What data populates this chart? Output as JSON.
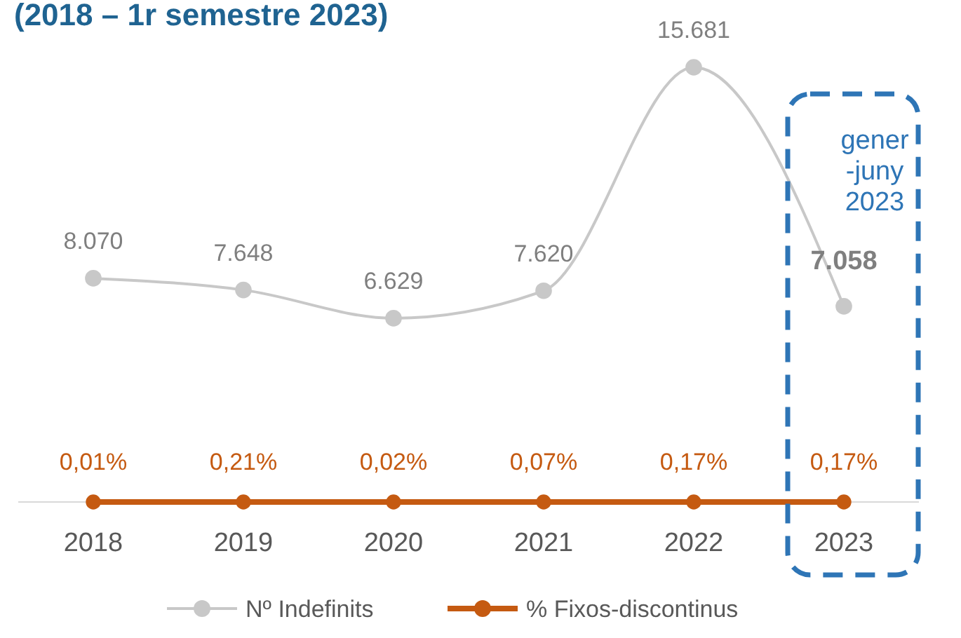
{
  "chart_data": {
    "type": "line",
    "title": "(2018 – 1r semestre 2023)",
    "categories": [
      "2018",
      "2019",
      "2020",
      "2021",
      "2022",
      "2023"
    ],
    "series": [
      {
        "name": "Nº Indefinits",
        "color": "#c8c8c8",
        "values": [
          8070,
          7648,
          6629,
          7620,
          15681,
          7058
        ],
        "value_labels": [
          "8.070",
          "7.648",
          "6.629",
          "7.620",
          "15.681",
          "7.058"
        ]
      },
      {
        "name": "% Fixos-discontinus",
        "color": "#c55a11",
        "values": [
          0.01,
          0.21,
          0.02,
          0.07,
          0.17,
          0.17
        ],
        "value_labels": [
          "0,01%",
          "0,21%",
          "0,02%",
          "0,07%",
          "0,17%",
          "0,17%"
        ]
      }
    ],
    "tick_labels": "x",
    "legend": "bottom",
    "marker": "circle",
    "annotations": [
      "gener\n-juny\n2023"
    ]
  }
}
